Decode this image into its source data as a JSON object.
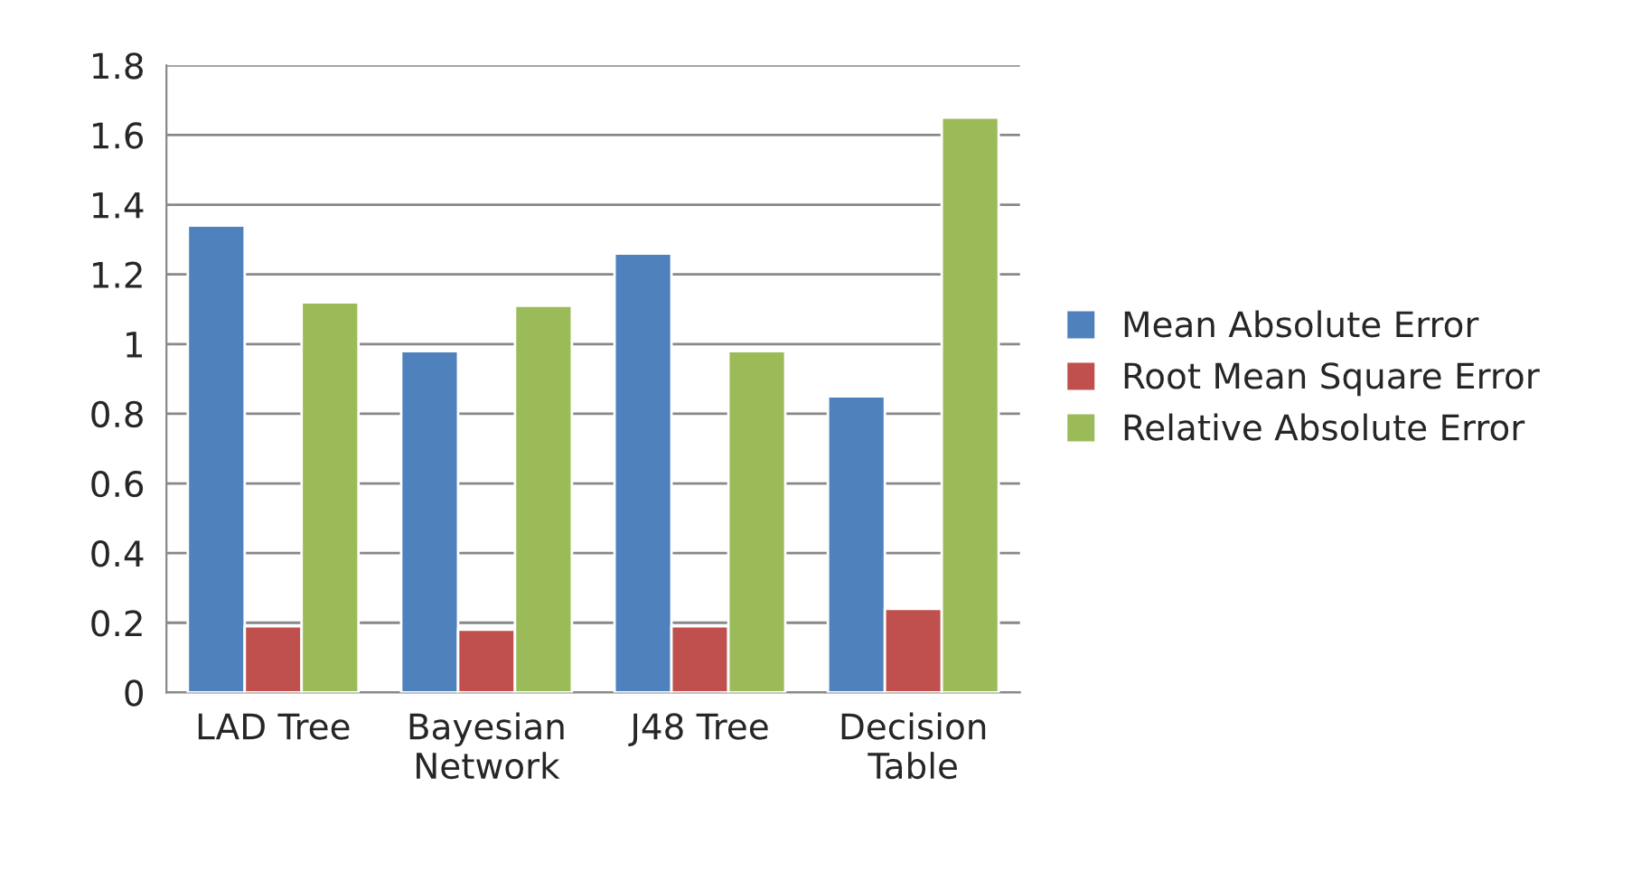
{
  "chart_data": {
    "type": "bar",
    "categories": [
      "LAD Tree",
      "Bayesian Network",
      "J48 Tree",
      "Decision Table"
    ],
    "series": [
      {
        "name": "Mean Absolute Error",
        "color": "#4f81bd",
        "values": [
          1.34,
          0.98,
          1.26,
          0.85
        ]
      },
      {
        "name": "Root Mean Square Error",
        "color": "#c0504d",
        "values": [
          0.19,
          0.18,
          0.19,
          0.24
        ]
      },
      {
        "name": "Relative Absolute Error",
        "color": "#9bbb59",
        "values": [
          1.12,
          1.11,
          0.98,
          1.65
        ]
      }
    ],
    "ylim": [
      0,
      1.8
    ],
    "yticks": [
      0,
      0.2,
      0.4,
      0.6,
      0.8,
      1,
      1.2,
      1.4,
      1.6,
      1.8
    ],
    "grid": "y",
    "legend": "right"
  }
}
